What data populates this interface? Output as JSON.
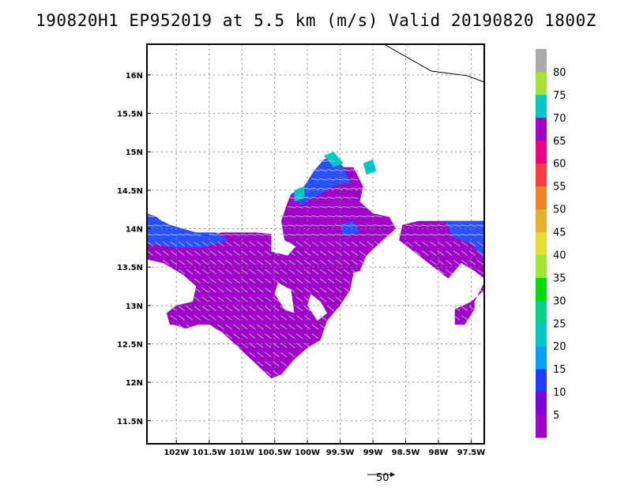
{
  "title": "190820H1 EP952019 at 5.5 km (m/s) Valid 20190820 1800Z",
  "chart_data": {
    "type": "heatmap",
    "title": "190820H1 EP952019 at 5.5 km (m/s) Valid 20190820 1800Z",
    "x_ticks": [
      -102,
      -101.5,
      -101,
      -100.5,
      -100,
      -99.5,
      -99,
      -98.5,
      -98,
      -97.5
    ],
    "x_tick_labels": [
      "102W",
      "101.5W",
      "101W",
      "100.5W",
      "100W",
      "99.5W",
      "99W",
      "98.5W",
      "98W",
      "97.5W"
    ],
    "y_ticks": [
      11.5,
      12,
      12.5,
      13,
      13.5,
      14,
      14.5,
      15,
      15.5,
      16
    ],
    "y_tick_labels": [
      "11.5N",
      "12N",
      "12.5N",
      "13N",
      "13.5N",
      "14N",
      "14.5N",
      "15N",
      "15.5N",
      "16N"
    ],
    "xlim": [
      -102.45,
      -97.3
    ],
    "ylim": [
      11.2,
      16.4
    ],
    "grid": true,
    "colorbar": {
      "labels": [
        "5",
        "10",
        "15",
        "20",
        "25",
        "30",
        "35",
        "40",
        "45",
        "50",
        "55",
        "60",
        "65",
        "70",
        "75",
        "80"
      ],
      "colors": [
        "#a000c8",
        "#8200dc",
        "#1e3cff",
        "#00a0ff",
        "#00c8c8",
        "#00d28c",
        "#00dc00",
        "#a0e632",
        "#e6dc32",
        "#e6af2d",
        "#f08228",
        "#fa3c3c",
        "#f00082",
        "#a000c8",
        "#00c8c8",
        "#a0e632",
        "#aaaaaa"
      ]
    },
    "vector_reference": "50",
    "speed_colors": {
      "low": "#a000c8",
      "mid": "#1e3cff",
      "high": "#00a0ff",
      "peak": "#00c8c8"
    }
  }
}
